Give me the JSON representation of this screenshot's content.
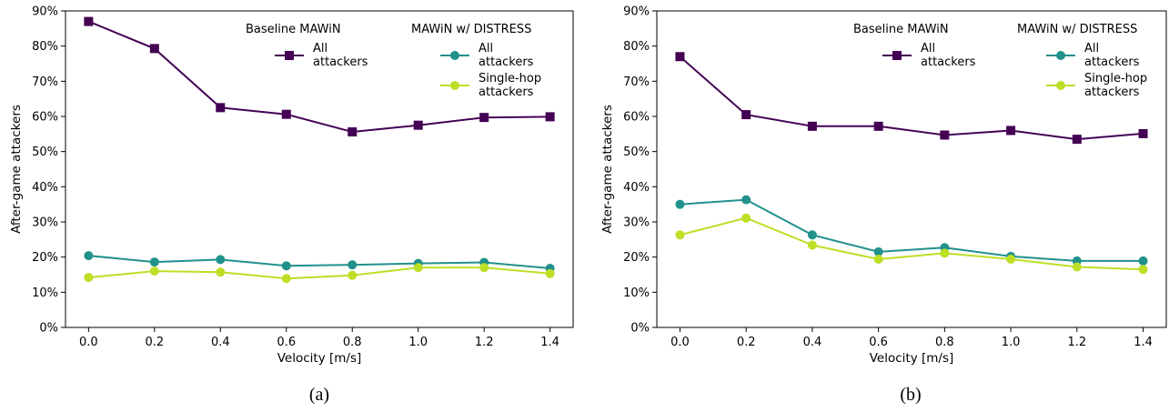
{
  "chart_data": [
    {
      "type": "line",
      "caption": "(a)",
      "xlabel": "Velocity [m/s]",
      "ylabel": "After-game attackers",
      "x": [
        0.0,
        0.2,
        0.4,
        0.6,
        0.8,
        1.0,
        1.2,
        1.4
      ],
      "xticks": [
        "0.0",
        "0.2",
        "0.4",
        "0.6",
        "0.8",
        "1.0",
        "1.2",
        "1.4"
      ],
      "xlim": [
        -0.07,
        1.47
      ],
      "ylim": [
        0,
        90
      ],
      "yticks": [
        "0%",
        "10%",
        "20%",
        "30%",
        "40%",
        "50%",
        "60%",
        "70%",
        "80%",
        "90%"
      ],
      "grid": false,
      "legend_placement": "top-right",
      "legend_groups": [
        {
          "title": "Baseline MAWiN",
          "entries": [
            [
              "All",
              "attackers"
            ]
          ]
        },
        {
          "title": "MAWiN w/ DISTRESS",
          "entries": [
            [
              "All",
              "attackers"
            ],
            [
              "Single-hop",
              "attackers"
            ]
          ]
        }
      ],
      "series": [
        {
          "values": [
            87.0,
            79.3,
            62.5,
            60.6,
            55.6,
            57.5,
            59.7,
            59.9
          ],
          "color": "#440154",
          "marker": "square"
        },
        {
          "values": [
            20.4,
            18.6,
            19.3,
            17.5,
            17.8,
            18.2,
            18.5,
            16.8
          ],
          "color": "#21918c",
          "marker": "circle"
        },
        {
          "values": [
            14.2,
            16.0,
            15.7,
            13.9,
            14.8,
            17.0,
            17.0,
            15.3
          ],
          "color": "#bddf26",
          "marker": "circle"
        }
      ]
    },
    {
      "type": "line",
      "caption": "(b)",
      "xlabel": "Velocity [m/s]",
      "ylabel": "After-game attackers",
      "x": [
        0.0,
        0.2,
        0.4,
        0.6,
        0.8,
        1.0,
        1.2,
        1.4
      ],
      "xticks": [
        "0.0",
        "0.2",
        "0.4",
        "0.6",
        "0.8",
        "1.0",
        "1.2",
        "1.4"
      ],
      "xlim": [
        -0.07,
        1.47
      ],
      "ylim": [
        0,
        90
      ],
      "yticks": [
        "0%",
        "10%",
        "20%",
        "30%",
        "40%",
        "50%",
        "60%",
        "70%",
        "80%",
        "90%"
      ],
      "grid": false,
      "legend_placement": "top-right",
      "legend_groups": [
        {
          "title": "Baseline MAWiN",
          "entries": [
            [
              "All",
              "attackers"
            ]
          ]
        },
        {
          "title": "MAWiN w/ DISTRESS",
          "entries": [
            [
              "All",
              "attackers"
            ],
            [
              "Single-hop",
              "attackers"
            ]
          ]
        }
      ],
      "series": [
        {
          "values": [
            77.0,
            60.5,
            57.2,
            57.2,
            54.7,
            56.0,
            53.5,
            55.1
          ],
          "color": "#440154",
          "marker": "square"
        },
        {
          "values": [
            35.0,
            36.3,
            26.3,
            21.5,
            22.7,
            20.2,
            18.9,
            18.9
          ],
          "color": "#21918c",
          "marker": "circle"
        },
        {
          "values": [
            26.3,
            31.1,
            23.4,
            19.4,
            21.1,
            19.4,
            17.2,
            16.5
          ],
          "color": "#bddf26",
          "marker": "circle"
        }
      ]
    }
  ]
}
